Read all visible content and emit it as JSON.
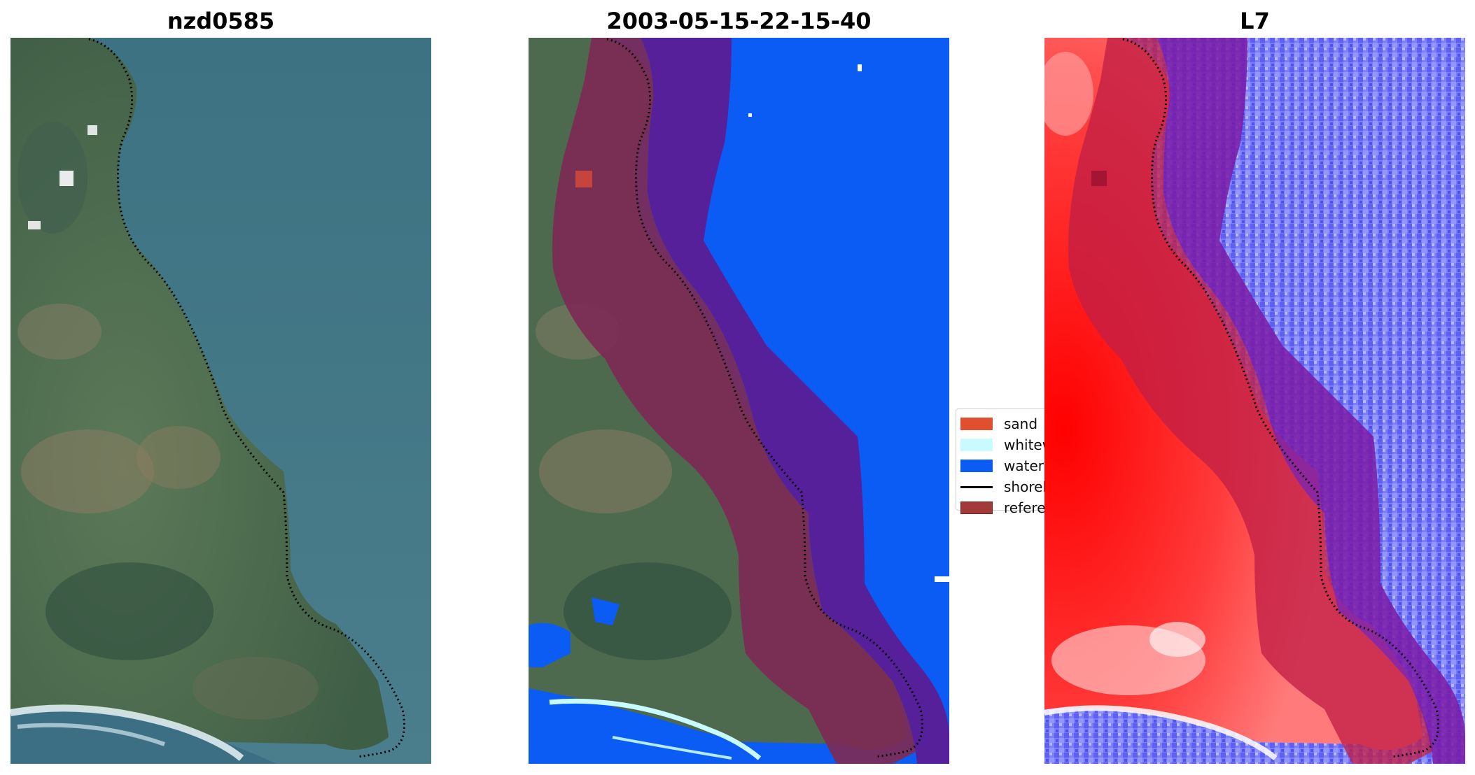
{
  "panels": [
    {
      "title": "nzd0585"
    },
    {
      "title": "2003-05-15-22-15-40"
    },
    {
      "title": "L7"
    }
  ],
  "legend": {
    "items": [
      {
        "label": "sand",
        "color": "#e0502e",
        "kind": "patch"
      },
      {
        "label": "whitewater",
        "color": "#c8fbff",
        "kind": "patch"
      },
      {
        "label": "water",
        "color": "#0a5cf5",
        "kind": "patch"
      },
      {
        "label": "shoreline",
        "color": "#000000",
        "kind": "line"
      },
      {
        "label": "reference",
        "color": "#a23a3a",
        "kind": "patch"
      }
    ]
  },
  "colors": {
    "sea": "#467a86",
    "land": "#4c6a4e",
    "water_class": "#0a5cf5",
    "buffer_land": "#7d2a55",
    "buffer_sea": "#55209a",
    "index_land": "#ff2222",
    "index_water": "#6f72ff"
  }
}
